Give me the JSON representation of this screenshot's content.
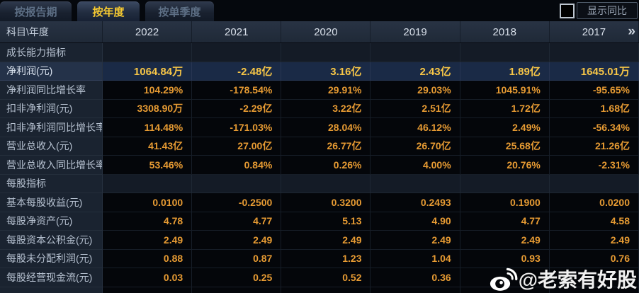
{
  "tabs": [
    {
      "label": "按报告期",
      "active": false
    },
    {
      "label": "按年度",
      "active": true
    },
    {
      "label": "按单季度",
      "active": false
    }
  ],
  "controls": {
    "show_yoy_label": "显示同比",
    "checkbox_checked": false
  },
  "table": {
    "corner_label": "科目\\年度",
    "years": [
      "2022",
      "2021",
      "2020",
      "2019",
      "2018",
      "2017"
    ],
    "more_icon": "»",
    "rows": [
      {
        "type": "section",
        "label": "成长能力指标",
        "values": [
          "",
          "",
          "",
          "",
          "",
          ""
        ]
      },
      {
        "type": "data",
        "highlight": true,
        "label": "净利润(元)",
        "values": [
          "1064.84万",
          "-2.48亿",
          "3.16亿",
          "2.43亿",
          "1.89亿",
          "1645.01万"
        ]
      },
      {
        "type": "data",
        "label": "净利润同比增长率",
        "values": [
          "104.29%",
          "-178.54%",
          "29.91%",
          "29.03%",
          "1045.91%",
          "-95.65%"
        ]
      },
      {
        "type": "data",
        "label": "扣非净利润(元)",
        "values": [
          "3308.90万",
          "-2.29亿",
          "3.22亿",
          "2.51亿",
          "1.72亿",
          "1.68亿"
        ]
      },
      {
        "type": "data",
        "label": "扣非净利润同比增长率",
        "values": [
          "114.48%",
          "-171.03%",
          "28.04%",
          "46.12%",
          "2.49%",
          "-56.34%"
        ]
      },
      {
        "type": "data",
        "label": "营业总收入(元)",
        "values": [
          "41.43亿",
          "27.00亿",
          "26.77亿",
          "26.70亿",
          "25.68亿",
          "21.26亿"
        ]
      },
      {
        "type": "data",
        "label": "营业总收入同比增长率",
        "values": [
          "53.46%",
          "0.84%",
          "0.26%",
          "4.00%",
          "20.76%",
          "-2.31%"
        ]
      },
      {
        "type": "section",
        "label": "每股指标",
        "values": [
          "",
          "",
          "",
          "",
          "",
          ""
        ]
      },
      {
        "type": "data",
        "label": "基本每股收益(元)",
        "values": [
          "0.0100",
          "-0.2500",
          "0.3200",
          "0.2493",
          "0.1900",
          "0.0200"
        ]
      },
      {
        "type": "data",
        "label": "每股净资产(元)",
        "values": [
          "4.78",
          "4.77",
          "5.13",
          "4.90",
          "4.77",
          "4.58"
        ]
      },
      {
        "type": "data",
        "label": "每股资本公积金(元)",
        "values": [
          "2.49",
          "2.49",
          "2.49",
          "2.49",
          "2.49",
          "2.49"
        ]
      },
      {
        "type": "data",
        "label": "每股未分配利润(元)",
        "values": [
          "0.88",
          "0.87",
          "1.23",
          "1.04",
          "0.93",
          "0.76"
        ]
      },
      {
        "type": "data",
        "label": "每股经营现金流(元)",
        "values": [
          "0.03",
          "0.25",
          "0.52",
          "0.36",
          "",
          ""
        ]
      }
    ]
  },
  "watermark": {
    "text": "@老索有好股",
    "icon": "weibo-icon"
  },
  "colors": {
    "accent_gold": "#e79b33",
    "highlight_gold": "#f6c547",
    "tab_active_text": "#f8cb31",
    "label_bg": "#1a2330",
    "highlight_row_bg": "#1a2a46",
    "header_bg": "#232e3e"
  }
}
